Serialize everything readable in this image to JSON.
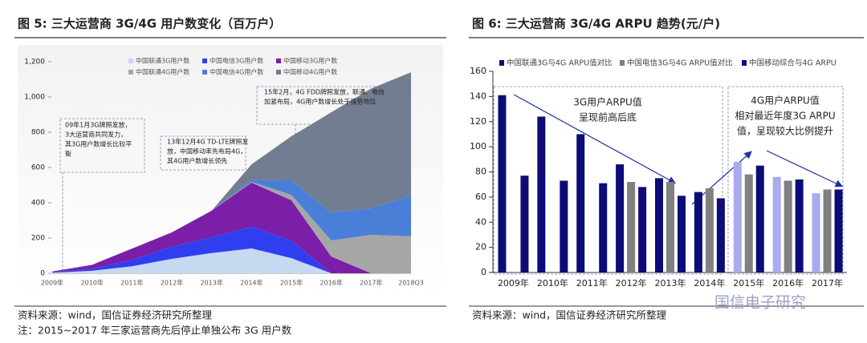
{
  "chart_data": [
    {
      "type": "area",
      "title": "图 5:  三大运营商 3G/4G 用户数变化（百万户）",
      "categories": [
        "2009年",
        "2010年",
        "2011年",
        "2012年",
        "2013年",
        "2014年",
        "2015年",
        "2016年",
        "2017年",
        "2018Q3"
      ],
      "series": [
        {
          "name": "中国联通3G用户数",
          "color": "#c6d9f1",
          "values": [
            3,
            14,
            40,
            82,
            115,
            141,
            86,
            0,
            0,
            0
          ]
        },
        {
          "name": "中国电信3G用户数",
          "color": "#2f3ff0",
          "values": [
            4,
            12,
            35,
            68,
            90,
            123,
            100,
            0,
            0,
            0
          ]
        },
        {
          "name": "中国移动3G用户数",
          "color": "#7b1fa8",
          "values": [
            3,
            22,
            65,
            82,
            150,
            250,
            228,
            95,
            0,
            0
          ]
        },
        {
          "name": "中国联通4G用户数",
          "color": "#a6a6a6",
          "values": [
            0,
            0,
            0,
            0,
            0,
            4,
            31,
            91,
            218,
            210
          ]
        },
        {
          "name": "中国电信4G用户数",
          "color": "#4a7fd8",
          "values": [
            0,
            0,
            0,
            0,
            0,
            10,
            82,
            159,
            150,
            230
          ]
        },
        {
          "name": "中国移动4G用户数",
          "color": "#737d91",
          "values": [
            0,
            0,
            0,
            0,
            0,
            90,
            250,
            568,
            680,
            700
          ]
        }
      ],
      "ylim": [
        0,
        1200
      ],
      "yticks": [
        0,
        200,
        400,
        600,
        800,
        {
          "value": 1000,
          "label": "1,000"
        },
        {
          "value": 1200,
          "label": "1,200"
        }
      ],
      "annotations": [
        [
          "09年1月3G牌照发放，",
          "3大运营商共同发力，",
          "其3G用户数增长比较平",
          "衡"
        ],
        [
          "13年12月4G TD-LTE牌照发",
          "放，中国移动率先布局4G，",
          "其4G用户数增长领先"
        ],
        [
          "15年2月，4G FDD牌照发放，联通、电信",
          "加紧布局，4G用户数增长处于强势地位"
        ]
      ],
      "source": "资料来源：wind，国信证券经济研究所整理",
      "note": "注：2015~2017 年三家运营商先后停止单独公布 3G 用户数"
    },
    {
      "type": "bar",
      "title": "图 6:  三大运营商 3G/4G ARPU 趋势(元/户)",
      "categories": [
        "2009年",
        "2010年",
        "2011年",
        "2012年",
        "2013年",
        "2014年",
        "2015年",
        "2016年",
        "2017年"
      ],
      "series": [
        {
          "name": "中国联通3G与4G ARPU值对比",
          "color": "#0c0c78",
          "values": [
            141,
            124,
            110,
            86,
            75,
            64,
            88,
            76,
            63
          ],
          "colors": [
            "#0c0c78",
            "#0c0c78",
            "#0c0c78",
            "#0c0c78",
            "#0c0c78",
            "#0c0c78",
            "#aaaaee",
            "#aaaaee",
            "#aaaaee"
          ]
        },
        {
          "name": "中国电信3G与4G ARPU值对比",
          "color": "#808080",
          "values": [
            null,
            null,
            null,
            72,
            72,
            67,
            78,
            73,
            66
          ]
        },
        {
          "name": "中国移动综合与4G ARPU",
          "color": "#0c0c78",
          "values": [
            77,
            73,
            71,
            68,
            61,
            59,
            85,
            74,
            66
          ]
        }
      ],
      "ylim": [
        0,
        160
      ],
      "yticks": [
        0,
        20,
        40,
        60,
        80,
        100,
        120,
        140,
        160
      ],
      "annotations": [
        [
          "3G用户ARPU值",
          "呈现前高后底"
        ],
        [
          "4G用户ARPU值",
          "相对最近年度3G ARPU",
          "值，呈现较大比例提升"
        ]
      ],
      "source": "资料来源：wind，国信证券经济研究所整理",
      "watermark": "国信电子研究"
    }
  ]
}
